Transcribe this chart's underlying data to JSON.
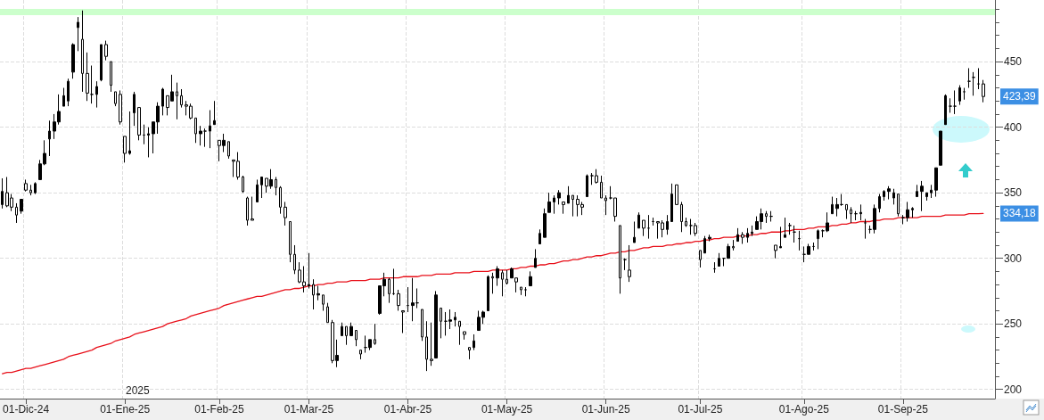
{
  "chart_data": {
    "type": "candlestick",
    "categories": [
      null,
      null,
      null,
      null,
      null,
      "01-Dic-24",
      null,
      null,
      null,
      null,
      null,
      null,
      null,
      null,
      null,
      null,
      null,
      null,
      null,
      null,
      null,
      null,
      null,
      null,
      null,
      null,
      "01-Ene-25",
      null,
      null,
      null,
      null,
      null,
      null,
      null,
      null,
      null,
      null,
      null,
      null,
      null,
      null,
      null,
      null,
      null,
      null,
      null,
      "01-Feb-25",
      null,
      null,
      null,
      null,
      null,
      null,
      null,
      null,
      null,
      null,
      null,
      null,
      null,
      null,
      null,
      null,
      null,
      null,
      "01-Mar-25",
      null,
      null,
      null,
      null,
      null,
      null,
      null,
      null,
      null,
      null,
      null,
      null,
      null,
      null,
      null,
      null,
      null,
      null,
      null,
      null,
      "01-Abr-25",
      null,
      null,
      null,
      null,
      null,
      null,
      null,
      null,
      null,
      null,
      null,
      null,
      null,
      null,
      null,
      null,
      null,
      null,
      null,
      null,
      "01-May-25",
      null,
      null,
      null,
      null,
      null,
      null,
      null,
      null,
      null,
      null,
      null,
      null,
      null,
      null,
      null,
      null,
      null,
      null,
      null,
      null,
      "01-Jun-25",
      null,
      null,
      null,
      null,
      null,
      null,
      null,
      null,
      null,
      null,
      null,
      null,
      null,
      null,
      null,
      null,
      null,
      null,
      null,
      "01-Jul-25",
      null,
      null,
      null,
      null,
      null,
      null,
      null,
      null,
      null,
      null,
      null,
      null,
      null,
      null,
      null,
      null,
      null,
      null,
      null,
      null,
      null,
      "01-Ago-25",
      null,
      null,
      null,
      null,
      null,
      null,
      null,
      null,
      null,
      null,
      null,
      null,
      null,
      null,
      null,
      null,
      null,
      null,
      null,
      null,
      "01-Sep-25",
      null,
      null,
      null,
      null,
      null,
      null,
      null,
      null,
      null,
      null,
      null,
      null,
      null,
      null,
      null,
      null,
      null
    ],
    "series": [
      {
        "color": "#000000",
        "ohlc": [
          [
            341,
            361,
            338,
            351
          ],
          [
            350,
            362,
            339,
            340
          ],
          [
            346,
            349,
            336,
            339
          ],
          [
            339,
            342,
            327,
            333
          ],
          [
            336,
            345,
            334,
            345
          ],
          [
            357,
            360,
            351,
            352
          ],
          [
            352,
            356,
            348,
            350
          ],
          [
            350,
            358,
            349,
            357
          ],
          [
            360,
            375,
            360,
            372
          ],
          [
            372,
            390,
            371,
            380
          ],
          [
            391,
            405,
            378,
            397
          ],
          [
            397,
            410,
            391,
            404
          ],
          [
            404,
            425,
            402,
            412
          ],
          [
            416,
            430,
            416,
            424
          ],
          [
            420,
            437,
            416,
            435
          ],
          [
            442,
            464,
            437,
            463
          ],
          [
            476,
            484,
            458,
            480
          ],
          [
            467,
            489,
            427,
            441
          ],
          [
            441,
            457,
            420,
            426
          ],
          [
            425,
            447,
            418,
            425
          ],
          [
            425,
            435,
            415,
            431
          ],
          [
            436,
            463,
            435,
            463
          ],
          [
            463,
            466,
            451,
            454
          ],
          [
            450,
            450,
            427,
            432
          ],
          [
            427,
            427,
            416,
            418
          ],
          [
            425,
            428,
            402,
            404
          ],
          [
            393,
            393,
            373,
            380
          ],
          [
            380,
            412,
            379,
            382
          ],
          [
            411,
            427,
            401,
            425
          ],
          [
            415,
            415,
            390,
            394
          ],
          [
            394,
            402,
            387,
            394
          ],
          [
            394,
            400,
            377,
            395
          ],
          [
            395,
            404,
            380,
            404
          ],
          [
            404,
            419,
            395,
            416
          ],
          [
            416,
            430,
            409,
            429
          ],
          [
            424,
            424,
            409,
            415
          ],
          [
            420,
            440,
            420,
            427
          ],
          [
            427,
            434,
            406,
            424
          ],
          [
            424,
            429,
            415,
            417
          ],
          [
            417,
            420,
            409,
            416
          ],
          [
            416,
            418,
            406,
            407
          ],
          [
            407,
            407,
            388,
            395
          ],
          [
            395,
            401,
            386,
            397
          ],
          [
            397,
            399,
            385,
            397
          ],
          [
            397,
            413,
            384,
            401
          ],
          [
            402,
            420,
            402,
            405
          ],
          [
            390,
            390,
            374,
            386
          ],
          [
            386,
            395,
            381,
            390
          ],
          [
            389,
            389,
            376,
            378
          ],
          [
            375,
            375,
            362,
            374
          ],
          [
            374,
            381,
            360,
            362
          ],
          [
            362,
            363,
            350,
            351
          ],
          [
            346,
            347,
            325,
            329
          ],
          [
            330,
            347,
            329,
            329
          ],
          [
            343,
            360,
            343,
            356
          ],
          [
            356,
            362,
            346,
            362
          ],
          [
            361,
            361,
            350,
            355
          ],
          [
            355,
            368,
            353,
            360
          ],
          [
            360,
            362,
            348,
            354
          ],
          [
            354,
            355,
            334,
            339
          ],
          [
            339,
            343,
            325,
            331
          ],
          [
            328,
            328,
            297,
            303
          ],
          [
            303,
            310,
            288,
            291
          ],
          [
            291,
            297,
            281,
            282
          ],
          [
            282,
            294,
            274,
            279
          ],
          [
            279,
            304,
            277,
            280
          ],
          [
            280,
            284,
            261,
            272
          ],
          [
            272,
            279,
            268,
            273
          ],
          [
            272,
            272,
            260,
            265
          ],
          [
            263,
            266,
            251,
            251
          ],
          [
            251,
            253,
            220,
            222
          ],
          [
            222,
            238,
            217,
            226
          ],
          [
            241,
            251,
            241,
            248
          ],
          [
            248,
            248,
            234,
            241
          ],
          [
            241,
            251,
            241,
            248
          ],
          [
            245,
            245,
            233,
            238
          ],
          [
            230,
            230,
            223,
            227
          ],
          [
            232,
            241,
            228,
            232
          ],
          [
            232,
            238,
            230,
            238
          ],
          [
            238,
            250,
            234,
            235
          ],
          [
            258,
            279,
            257,
            279
          ],
          [
            279,
            289,
            271,
            284
          ],
          [
            284,
            285,
            266,
            273
          ],
          [
            273,
            292,
            272,
            273
          ],
          [
            273,
            276,
            260,
            264
          ],
          [
            260,
            260,
            243,
            259
          ],
          [
            264,
            278,
            259,
            264
          ],
          [
            264,
            285,
            252,
            266
          ],
          [
            266,
            277,
            262,
            266
          ],
          [
            261,
            261,
            237,
            240
          ],
          [
            240,
            252,
            214,
            223
          ],
          [
            223,
            251,
            218,
            222
          ],
          [
            224,
            275,
            224,
            272
          ],
          [
            262,
            262,
            239,
            252
          ],
          [
            252,
            259,
            241,
            252
          ],
          [
            252,
            261,
            246,
            253
          ],
          [
            253,
            259,
            248,
            255
          ],
          [
            252,
            252,
            234,
            248
          ],
          [
            244,
            244,
            238,
            242
          ],
          [
            232,
            232,
            223,
            230
          ],
          [
            232,
            242,
            230,
            237
          ],
          [
            245,
            260,
            245,
            255
          ],
          [
            255,
            260,
            250,
            259
          ],
          [
            260,
            287,
            260,
            286
          ],
          [
            286,
            289,
            273,
            285
          ],
          [
            285,
            294,
            279,
            292
          ],
          [
            289,
            291,
            271,
            284
          ],
          [
            284,
            291,
            280,
            281
          ],
          [
            285,
            293,
            285,
            292
          ],
          [
            285,
            285,
            274,
            282
          ],
          [
            278,
            278,
            272,
            276
          ],
          [
            276,
            278,
            271,
            276
          ],
          [
            279,
            290,
            279,
            286
          ],
          [
            293,
            307,
            293,
            300
          ],
          [
            311,
            322,
            311,
            319
          ],
          [
            316,
            338,
            316,
            334
          ],
          [
            335,
            350,
            335,
            343
          ],
          [
            343,
            348,
            334,
            346
          ],
          [
            346,
            352,
            341,
            350
          ],
          [
            343,
            343,
            334,
            341
          ],
          [
            342,
            355,
            342,
            348
          ],
          [
            348,
            348,
            332,
            345
          ],
          [
            345,
            348,
            332,
            341
          ],
          [
            341,
            343,
            333,
            339
          ],
          [
            347,
            364,
            347,
            363
          ],
          [
            363,
            365,
            356,
            363
          ],
          [
            363,
            368,
            357,
            358
          ],
          [
            358,
            363,
            346,
            346
          ],
          [
            346,
            348,
            333,
            344
          ],
          [
            346,
            355,
            345,
            346
          ],
          [
            346,
            346,
            328,
            332
          ],
          [
            325,
            325,
            273,
            285
          ],
          [
            299,
            300,
            291,
            299
          ],
          [
            291,
            310,
            282,
            286
          ],
          [
            312,
            328,
            312,
            316
          ],
          [
            323,
            335,
            323,
            333
          ],
          [
            329,
            329,
            317,
            323
          ],
          [
            323,
            333,
            315,
            323
          ],
          [
            328,
            331,
            325,
            328
          ],
          [
            328,
            328,
            315,
            327
          ],
          [
            327,
            329,
            316,
            322
          ],
          [
            322,
            333,
            318,
            328
          ],
          [
            328,
            357,
            328,
            349
          ],
          [
            356,
            356,
            341,
            341
          ],
          [
            341,
            343,
            320,
            328
          ],
          [
            328,
            331,
            324,
            325
          ],
          [
            325,
            330,
            318,
            325
          ],
          [
            325,
            327,
            317,
            319
          ],
          [
            306,
            306,
            293,
            299
          ],
          [
            304,
            317,
            304,
            315
          ],
          [
            315,
            318,
            313,
            316
          ],
          [
            292,
            297,
            289,
            292
          ],
          [
            294,
            304,
            294,
            300
          ],
          [
            300,
            300,
            294,
            300
          ],
          [
            300,
            311,
            300,
            309
          ],
          [
            309,
            314,
            306,
            308
          ],
          [
            313,
            323,
            313,
            318
          ],
          [
            318,
            320,
            311,
            316
          ],
          [
            316,
            323,
            312,
            319
          ],
          [
            319,
            325,
            317,
            320
          ],
          [
            322,
            332,
            322,
            328
          ],
          [
            328,
            338,
            322,
            334
          ],
          [
            334,
            336,
            327,
            332
          ],
          [
            332,
            336,
            328,
            332
          ],
          [
            310,
            310,
            300,
            306
          ],
          [
            308,
            324,
            308,
            309
          ],
          [
            316,
            331,
            316,
            318
          ],
          [
            325,
            327,
            318,
            325
          ],
          [
            320,
            325,
            312,
            320
          ],
          [
            315,
            321,
            306,
            315
          ],
          [
            303,
            309,
            297,
            303
          ],
          [
            303,
            311,
            303,
            309
          ],
          [
            309,
            312,
            306,
            309
          ],
          [
            315,
            322,
            307,
            321
          ],
          [
            321,
            322,
            316,
            321
          ],
          [
            321,
            335,
            320,
            327
          ],
          [
            334,
            347,
            334,
            341
          ],
          [
            338,
            346,
            332,
            341
          ],
          [
            341,
            349,
            340,
            341
          ],
          [
            341,
            341,
            330,
            337
          ],
          [
            337,
            339,
            327,
            334
          ],
          [
            334,
            336,
            329,
            334
          ],
          [
            334,
            341,
            329,
            335
          ],
          [
            327,
            330,
            315,
            327
          ],
          [
            322,
            325,
            319,
            322
          ],
          [
            322,
            341,
            319,
            338
          ],
          [
            338,
            349,
            335,
            347
          ],
          [
            347,
            352,
            344,
            351
          ],
          [
            351,
            355,
            345,
            353
          ],
          [
            346,
            353,
            341,
            350
          ],
          [
            349,
            349,
            332,
            334
          ],
          [
            331,
            333,
            326,
            331
          ],
          [
            331,
            343,
            328,
            337
          ],
          [
            337,
            339,
            331,
            338
          ],
          [
            347,
            356,
            347,
            351
          ],
          [
            351,
            359,
            336,
            355
          ],
          [
            347,
            350,
            344,
            350
          ],
          [
            350,
            356,
            346,
            352
          ],
          [
            352,
            369,
            347,
            369
          ],
          [
            371,
            397,
            371,
            397
          ],
          [
            402,
            425,
            402,
            424
          ],
          [
            416,
            422,
            411,
            416
          ],
          [
            416,
            428,
            410,
            416
          ],
          [
            420,
            432,
            417,
            430
          ],
          [
            427,
            430,
            421,
            427
          ],
          [
            435,
            445,
            430,
            435
          ],
          [
            438,
            442,
            424,
            438
          ],
          [
            433,
            445,
            429,
            433
          ],
          [
            433,
            436,
            419,
            423.39
          ]
        ]
      },
      {
        "type": "line",
        "color": "#e8101a",
        "values": [
          212,
          213,
          213,
          214,
          215,
          216,
          216,
          217,
          218,
          219,
          220,
          221,
          222,
          223,
          225,
          226,
          227,
          228,
          229,
          230,
          232,
          233,
          234,
          235,
          237,
          238,
          239,
          240,
          242,
          243,
          244,
          245,
          246,
          247,
          248,
          250,
          251,
          252,
          253,
          254,
          256,
          257,
          258,
          259,
          260,
          261,
          262,
          264,
          265,
          266,
          267,
          268,
          269,
          270,
          271,
          271,
          272,
          273,
          274,
          275,
          276,
          276,
          277,
          277,
          278,
          279,
          279,
          280,
          280,
          281,
          281,
          282,
          282,
          282,
          283,
          283,
          283,
          283,
          284,
          284,
          284,
          285,
          285,
          285,
          285,
          286,
          286,
          286,
          286,
          287,
          287,
          287,
          288,
          288,
          288,
          288,
          289,
          289,
          289,
          289,
          290,
          290,
          290,
          290,
          291,
          291,
          291,
          291,
          292,
          292,
          293,
          293,
          294,
          294,
          295,
          295,
          296,
          296,
          297,
          298,
          298,
          299,
          299,
          300,
          301,
          301,
          302,
          302,
          303,
          304,
          304,
          305,
          305,
          306,
          306,
          307,
          308,
          308,
          309,
          309,
          309,
          310,
          310,
          311,
          311,
          312,
          312,
          313,
          313,
          314,
          314,
          315,
          315,
          316,
          316,
          316,
          317,
          317,
          317,
          318,
          318,
          319,
          319,
          320,
          320,
          320,
          321,
          321,
          322,
          322,
          322,
          323,
          323,
          324,
          324,
          324,
          325,
          325,
          326,
          326,
          327,
          327,
          328,
          328,
          328,
          329,
          329,
          330,
          330,
          330,
          331,
          331,
          331,
          331,
          331,
          332,
          332,
          332,
          332,
          332,
          333,
          333,
          333,
          333,
          333,
          334,
          334,
          334,
          334.18
        ]
      }
    ],
    "ylim": [
      193,
      497
    ],
    "yticks": [
      200,
      {
        "value": 210,
        "label": null
      },
      {
        "value": 220,
        "label": null
      },
      {
        "value": 230,
        "label": null
      },
      {
        "value": 240,
        "label": null
      },
      250,
      {
        "value": 260,
        "label": null
      },
      {
        "value": 270,
        "label": null
      },
      {
        "value": 280,
        "label": null
      },
      {
        "value": 290,
        "label": null
      },
      300,
      {
        "value": 310,
        "label": null
      },
      {
        "value": 320,
        "label": null
      },
      {
        "value": 330,
        "label": null
      },
      {
        "value": 340,
        "label": null
      },
      350,
      {
        "value": 360,
        "label": null
      },
      {
        "value": 370,
        "label": null
      },
      {
        "value": 380,
        "label": null
      },
      {
        "value": 390,
        "label": null
      },
      400,
      {
        "value": 410,
        "label": null
      },
      {
        "value": 420,
        "label": null
      },
      {
        "value": 430,
        "label": null
      },
      {
        "value": 440,
        "label": null
      },
      450,
      {
        "value": 460,
        "label": null
      },
      {
        "value": 470,
        "label": null
      },
      {
        "value": 480,
        "label": null
      },
      {
        "value": 490,
        "label": null
      }
    ],
    "ref_lines": [
      {
        "axis": "y",
        "value": 488,
        "color": "#ccffcc"
      }
    ],
    "annotations": [
      "2025",
      "423,39",
      "334,18"
    ],
    "grid": true,
    "marker": "none"
  }
}
